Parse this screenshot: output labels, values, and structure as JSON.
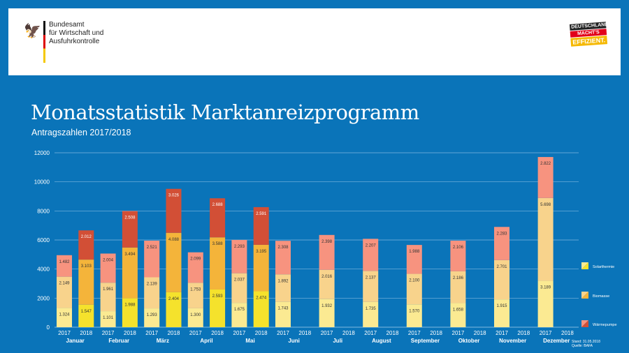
{
  "header": {
    "org_lines": [
      "Bundesamt",
      "für Wirtschaft und",
      "Ausfuhrkontrolle"
    ],
    "badge": [
      "DEUTSCHLAND",
      "MACHT'S",
      "EFFIZIENT."
    ]
  },
  "title": "Monatsstatistik Marktanreizprogramm",
  "subtitle": "Antragszahlen 2017/2018",
  "note": {
    "stand": "Stand: 31.05.2018",
    "quelle": "Quelle: BAFA"
  },
  "chart_data": {
    "type": "bar",
    "stacked": true,
    "ylim": [
      0,
      12000
    ],
    "yticks": [
      0,
      2000,
      4000,
      6000,
      8000,
      10000,
      12000
    ],
    "grid": true,
    "legend": "right",
    "categories": [
      "Januar",
      "Februar",
      "März",
      "April",
      "Mai",
      "Juni",
      "Juli",
      "August",
      "September",
      "Oktober",
      "November",
      "Dezember"
    ],
    "years": [
      "2017",
      "2018"
    ],
    "series": [
      {
        "name": "Solarthermie",
        "colors": {
          "2017": "#fbea92",
          "2018": "#f5e22c"
        },
        "2017": [
          1324,
          1101,
          1293,
          1300,
          1675,
          1743,
          1932,
          1735,
          1570,
          1658,
          1915,
          3189
        ],
        "2018": [
          1547,
          1988,
          2404,
          2593,
          2474,
          null,
          null,
          null,
          null,
          null,
          null,
          null
        ]
      },
      {
        "name": "Biomasse",
        "colors": {
          "2017": "#f8d38c",
          "2018": "#f4b43a"
        },
        "2017": [
          2149,
          1961,
          2139,
          1753,
          2037,
          1892,
          2016,
          2137,
          2100,
          2186,
          2701,
          5698
        ],
        "2018": [
          3103,
          3494,
          4088,
          3588,
          3195,
          null,
          null,
          null,
          null,
          null,
          null,
          null
        ]
      },
      {
        "name": "Wärmepumpe",
        "colors": {
          "2017": "#f7937f",
          "2018": "#d24f36"
        },
        "2017": [
          1482,
          2004,
          2521,
          2099,
          2293,
          2308,
          2398,
          2207,
          1988,
          2106,
          2283,
          2822
        ],
        "2018": [
          2012,
          2508,
          3026,
          2688,
          2591,
          null,
          null,
          null,
          null,
          null,
          null,
          null
        ]
      }
    ]
  }
}
